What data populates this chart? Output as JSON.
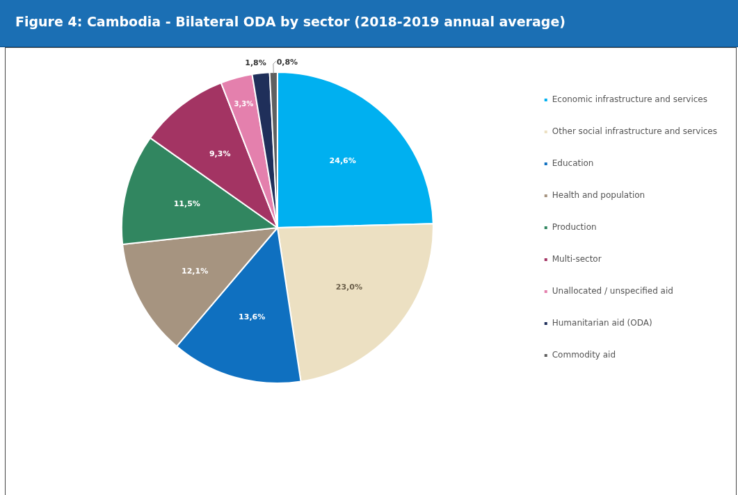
{
  "chart_data": {
    "type": "pie",
    "title": "Figure 4: Cambodia - Bilateral ODA by sector (2018-2019 annual average)",
    "categories": [
      "Economic infrastructure and services",
      "Other social infrastructure and services",
      "Education",
      "Health and population",
      "Production",
      "Multi-sector",
      "Unallocated / unspecified aid",
      "Humanitarian aid (ODA)",
      "Commodity aid"
    ],
    "values": [
      24.6,
      23.0,
      13.6,
      12.1,
      11.5,
      9.3,
      3.3,
      1.8,
      0.8
    ],
    "value_labels": [
      "24,6%",
      "23,0%",
      "13,6%",
      "12,1%",
      "11,5%",
      "9,3%",
      "3,3%",
      "1,8%",
      "0,8%"
    ],
    "colors": [
      "#00b0f0",
      "#ece0c2",
      "#0f70c0",
      "#a69480",
      "#318660",
      "#a33463",
      "#e480ad",
      "#1f2f5a",
      "#606060"
    ],
    "legend": "right"
  }
}
